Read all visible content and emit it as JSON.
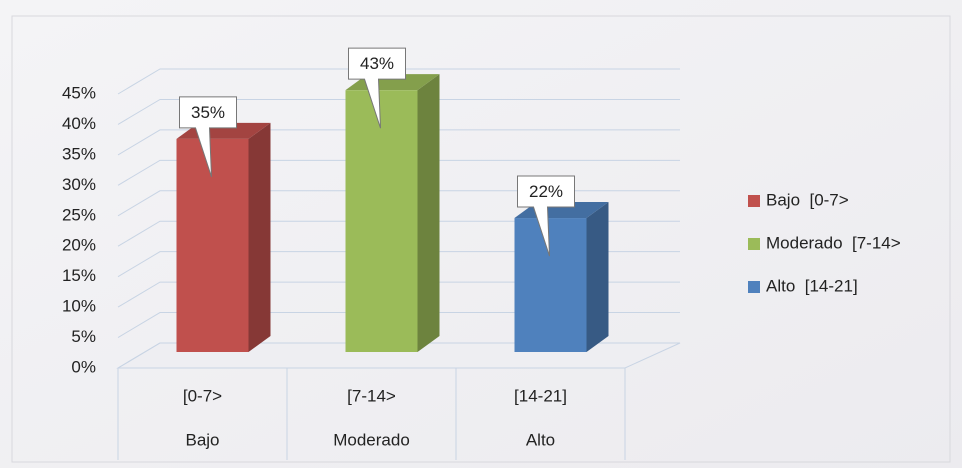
{
  "chart_data": {
    "type": "bar3d",
    "categories": [
      "[0-7>",
      "[7-14>",
      "[14-21]"
    ],
    "category_groups": [
      "Bajo",
      "Moderado",
      "Alto"
    ],
    "values": [
      35,
      43,
      22
    ],
    "value_labels": [
      "35%",
      "43%",
      "22%"
    ],
    "colors": [
      "#c0504d",
      "#9bbb59",
      "#4f81bd"
    ],
    "legend": [
      "Bajo  [0-7>",
      "Moderado  [7-14>",
      "Alto  [14-21]"
    ],
    "ylim": [
      0,
      45
    ],
    "yticks": [
      {
        "value": 0,
        "label": "0%"
      },
      {
        "value": 5,
        "label": "5%"
      },
      {
        "value": 10,
        "label": "10%"
      },
      {
        "value": 15,
        "label": "15%"
      },
      {
        "value": 20,
        "label": "20%"
      },
      {
        "value": 25,
        "label": "25%"
      },
      {
        "value": 30,
        "label": "30%"
      },
      {
        "value": 35,
        "label": "35%"
      },
      {
        "value": 40,
        "label": "40%"
      },
      {
        "value": 45,
        "label": "45%"
      }
    ],
    "grid": true,
    "legend_position": "right"
  }
}
